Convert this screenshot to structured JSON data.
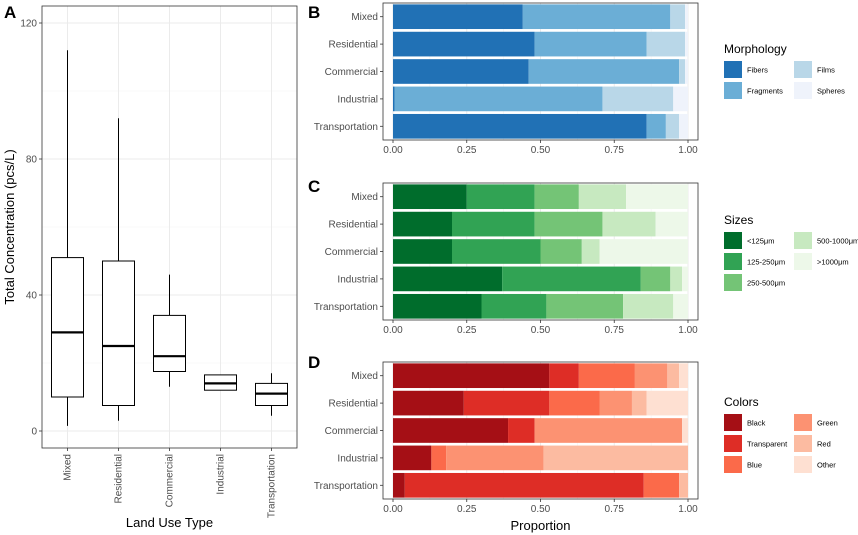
{
  "panels": {
    "A": {
      "letter": "A"
    },
    "B": {
      "letter": "B"
    },
    "C": {
      "letter": "C"
    },
    "D": {
      "letter": "D"
    }
  },
  "chart_data": [
    {
      "id": "A",
      "type": "boxplot",
      "title": "",
      "xlabel": "Land Use Type",
      "ylabel": "Total Concentration (pcs/L)",
      "ylim": [
        -5,
        125
      ],
      "yticks": [
        0,
        40,
        80,
        120
      ],
      "grid": true,
      "categories": [
        "Mixed",
        "Residential",
        "Commercial",
        "Industrial",
        "Transportation"
      ],
      "boxes": [
        {
          "min": 1.5,
          "q1": 10,
          "median": 29,
          "q3": 51,
          "max": 112
        },
        {
          "min": 3,
          "q1": 7.5,
          "median": 25,
          "q3": 50,
          "max": 92
        },
        {
          "min": 13,
          "q1": 17.5,
          "median": 22,
          "q3": 34,
          "max": 46
        },
        {
          "min": 12,
          "q1": 12,
          "median": 14,
          "q3": 16.5,
          "max": 16.5
        },
        {
          "min": 4.5,
          "q1": 7.5,
          "median": 11,
          "q3": 14,
          "max": 17
        }
      ]
    },
    {
      "id": "B",
      "type": "stacked-bar-horizontal",
      "xlim": [
        0,
        1
      ],
      "xticks": [
        "0.00",
        "0.25",
        "0.50",
        "0.75",
        "1.00"
      ],
      "categories": [
        "Mixed",
        "Residential",
        "Commercial",
        "Industrial",
        "Transportation"
      ],
      "legend_title": "Morphology",
      "legend_position": "right",
      "series": [
        {
          "name": "Fibers",
          "color": "#2171b5",
          "values": [
            0.44,
            0.48,
            0.46,
            0.005,
            0.86
          ]
        },
        {
          "name": "Fragments",
          "color": "#6baed6",
          "values": [
            0.5,
            0.38,
            0.51,
            0.705,
            0.065
          ]
        },
        {
          "name": "Films",
          "color": "#b9d7e8",
          "values": [
            0.05,
            0.13,
            0.02,
            0.24,
            0.045
          ]
        },
        {
          "name": "Spheres",
          "color": "#eff3fb",
          "values": [
            0.01,
            0.01,
            0.01,
            0.05,
            0.03
          ]
        }
      ]
    },
    {
      "id": "C",
      "type": "stacked-bar-horizontal",
      "xlim": [
        0,
        1
      ],
      "xticks": [
        "0.00",
        "0.25",
        "0.50",
        "0.75",
        "1.00"
      ],
      "categories": [
        "Mixed",
        "Residential",
        "Commercial",
        "Industrial",
        "Transportation"
      ],
      "legend_title": "Sizes",
      "legend_position": "right",
      "series": [
        {
          "name": "<125μm",
          "color": "#006d2c",
          "values": [
            0.25,
            0.2,
            0.2,
            0.37,
            0.3
          ]
        },
        {
          "name": "125-250μm",
          "color": "#31a354",
          "values": [
            0.23,
            0.28,
            0.3,
            0.47,
            0.22
          ]
        },
        {
          "name": "250-500μm",
          "color": "#74c476",
          "values": [
            0.15,
            0.23,
            0.14,
            0.1,
            0.26
          ]
        },
        {
          "name": "500-1000μm",
          "color": "#c7e9c0",
          "values": [
            0.16,
            0.18,
            0.06,
            0.04,
            0.17
          ]
        },
        {
          "name": ">1000μm",
          "color": "#edf8e9",
          "values": [
            0.21,
            0.11,
            0.3,
            0.02,
            0.05
          ]
        }
      ]
    },
    {
      "id": "D",
      "type": "stacked-bar-horizontal",
      "xlim": [
        0,
        1
      ],
      "xticks": [
        "0.00",
        "0.25",
        "0.50",
        "0.75",
        "1.00"
      ],
      "xlabel": "Proportion",
      "categories": [
        "Mixed",
        "Residential",
        "Commercial",
        "Industrial",
        "Transportation"
      ],
      "legend_title": "Colors",
      "legend_position": "right",
      "series": [
        {
          "name": "Black",
          "color": "#a50f15",
          "values": [
            0.53,
            0.24,
            0.39,
            0.13,
            0.04
          ]
        },
        {
          "name": "Transparent",
          "color": "#de2d26",
          "values": [
            0.1,
            0.29,
            0.09,
            0.0,
            0.81
          ]
        },
        {
          "name": "Blue",
          "color": "#fb6a4a",
          "values": [
            0.19,
            0.17,
            0.0,
            0.05,
            0.12
          ]
        },
        {
          "name": "Green",
          "color": "#fc9272",
          "values": [
            0.11,
            0.11,
            0.5,
            0.33,
            0.0
          ]
        },
        {
          "name": "Red",
          "color": "#fcbba1",
          "values": [
            0.04,
            0.05,
            0.0,
            0.49,
            0.03
          ]
        },
        {
          "name": "Other",
          "color": "#fee0d2",
          "values": [
            0.03,
            0.14,
            0.02,
            0.0,
            0.0
          ]
        }
      ]
    }
  ]
}
